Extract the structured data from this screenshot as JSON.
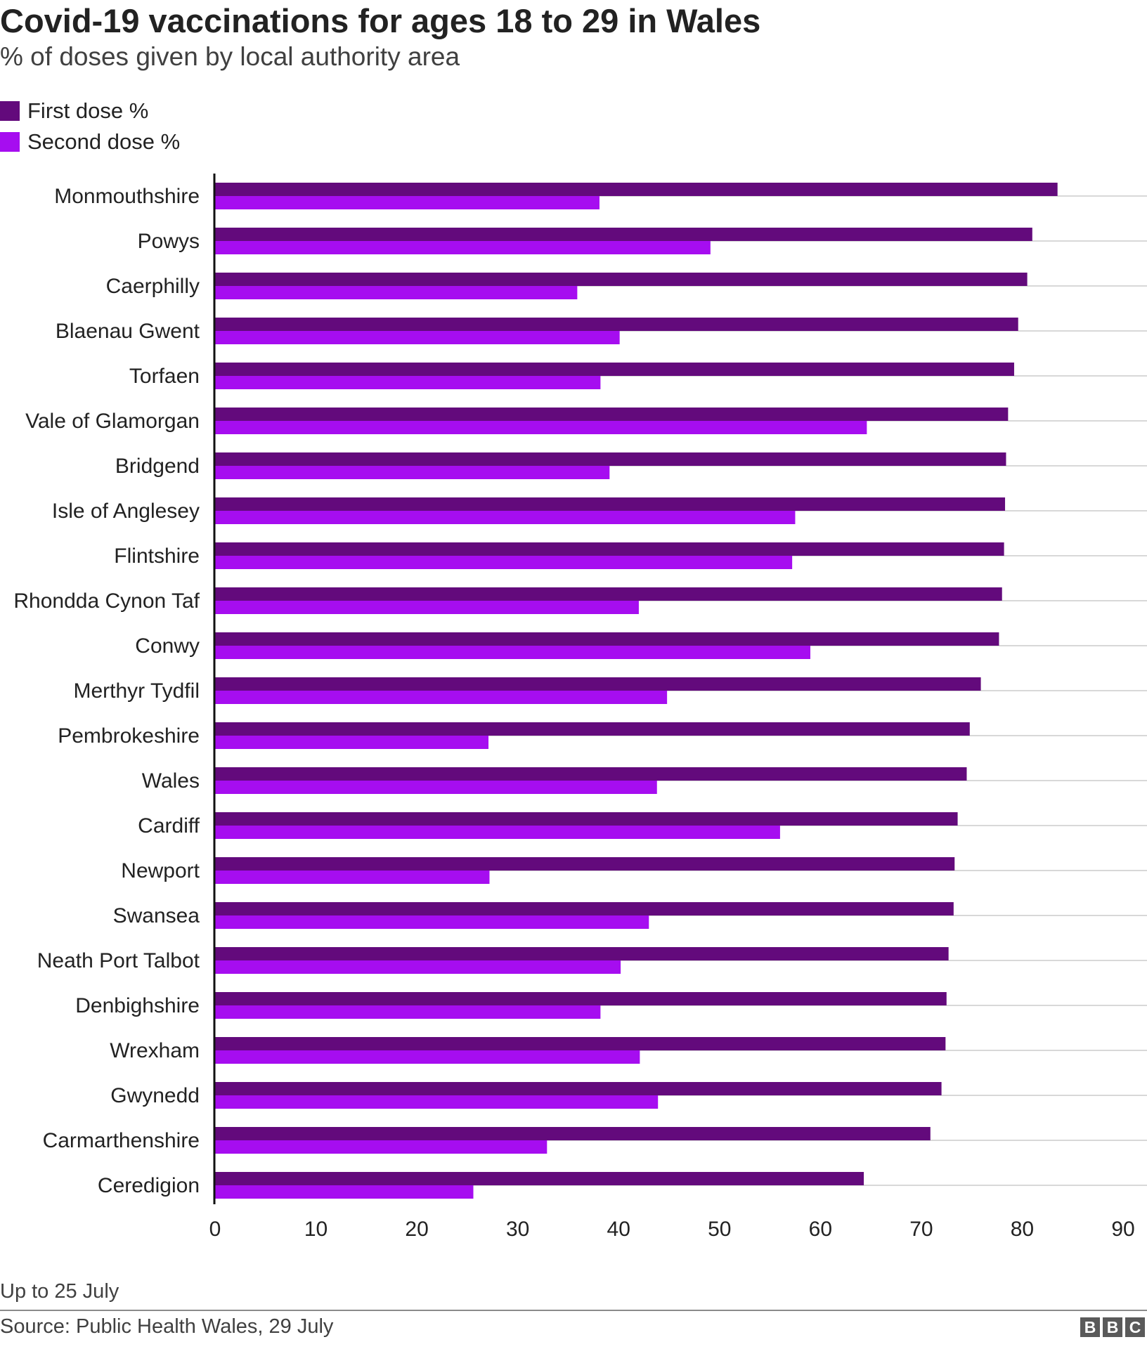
{
  "header": {
    "title": "Covid-19 vaccinations for ages 18 to 29 in Wales",
    "subtitle": "% of doses given by local authority area"
  },
  "colors": {
    "first": "#630a7c",
    "second": "#a60df0",
    "grid": "#cccccc",
    "axis": "#111111"
  },
  "chart_data": {
    "type": "bar",
    "orientation": "horizontal",
    "categories": [
      "Monmouthshire",
      "Powys",
      "Caerphilly",
      "Blaenau Gwent",
      "Torfaen",
      "Vale of Glamorgan",
      "Bridgend",
      "Isle of Anglesey",
      "Flintshire",
      "Rhondda Cynon Taf",
      "Conwy",
      "Merthyr Tydfil",
      "Pembrokeshire",
      "Wales",
      "Cardiff",
      "Newport",
      "Swansea",
      "Neath Port Talbot",
      "Denbighshire",
      "Wrexham",
      "Gwynedd",
      "Carmarthenshire",
      "Ceredigion"
    ],
    "series": [
      {
        "name": "First dose %",
        "values": [
          83.5,
          81,
          80.5,
          79.6,
          79.2,
          78.6,
          78.4,
          78.3,
          78.2,
          78,
          77.7,
          75.9,
          74.8,
          74.5,
          73.6,
          73.3,
          73.2,
          72.7,
          72.5,
          72.4,
          72,
          70.9,
          64.3
        ]
      },
      {
        "name": "Second dose %",
        "values": [
          38.1,
          49.1,
          35.9,
          40.1,
          38.2,
          64.6,
          39.1,
          57.5,
          57.2,
          42,
          59,
          44.8,
          27.1,
          43.8,
          56,
          27.2,
          43,
          40.2,
          38.2,
          42.1,
          43.9,
          32.9,
          25.6
        ]
      }
    ],
    "xticks": [
      "0",
      "10",
      "20",
      "30",
      "40",
      "50",
      "60",
      "70",
      "80",
      "90"
    ],
    "xlim": [
      0,
      90
    ],
    "grid": true,
    "legend": "top-left"
  },
  "footer": {
    "note": "Up to 25 July",
    "source": "Source: Public Health Wales, 29 July",
    "logo": [
      "B",
      "B",
      "C"
    ]
  }
}
